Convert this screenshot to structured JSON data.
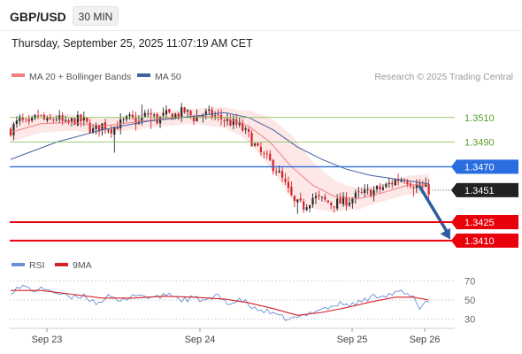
{
  "header": {
    "symbol": "GBP/USD",
    "timeframe": "30 MIN",
    "timestamp": "Thursday, September 25, 2025 11:07:19 AM CET"
  },
  "legend": {
    "ma20_bb": "MA 20 + Bollinger Bands",
    "ma50": "MA 50",
    "credit": "Research © 2025 Trading Central",
    "rsi": "RSI",
    "ma9": "9MA"
  },
  "colors": {
    "bull": "#2a2a2a",
    "bear": "#d61f26",
    "ma20": "#f08080",
    "ma50": "#4060a0",
    "band": "#fde3e3",
    "target_green": "#7cbf4a",
    "pivot_blue": "#2a6de0",
    "support_red": "#e8000b",
    "current": "#222222",
    "arrow": "#2d5d9f",
    "rsi": "#6b8fd6",
    "rsi_ma": "#d61f26"
  },
  "chart_data": [
    {
      "type": "candlestick",
      "title": "GBP/USD 30 MIN",
      "x_ticks": [
        "Sep 23",
        "Sep 24",
        "Sep 25",
        "Sep 26"
      ],
      "ylim": [
        1.3402,
        1.3535
      ],
      "levels": [
        {
          "name": "resistance-2",
          "value": 1.351,
          "label": "1.3510",
          "style": "green-thin"
        },
        {
          "name": "resistance-1",
          "value": 1.349,
          "label": "1.3490",
          "style": "green-thin"
        },
        {
          "name": "pivot",
          "value": 1.347,
          "label": "1.3470",
          "style": "blue"
        },
        {
          "name": "current",
          "value": 1.3451,
          "label": "1.3451",
          "style": "current"
        },
        {
          "name": "support-1",
          "value": 1.3425,
          "label": "1.3425",
          "style": "red"
        },
        {
          "name": "support-2",
          "value": 1.341,
          "label": "1.3410",
          "style": "red"
        }
      ],
      "anchors": [
        [
          0,
          1.35
        ],
        [
          3,
          1.3508
        ],
        [
          6,
          1.3503
        ],
        [
          9,
          1.3512
        ],
        [
          12,
          1.3506
        ],
        [
          15,
          1.351
        ],
        [
          18,
          1.3504
        ],
        [
          21,
          1.3508
        ],
        [
          24,
          1.3507
        ],
        [
          27,
          1.3499
        ],
        [
          30,
          1.3504
        ],
        [
          33,
          1.3501
        ],
        [
          36,
          1.3505
        ],
        [
          39,
          1.3509
        ],
        [
          42,
          1.3506
        ],
        [
          45,
          1.3514
        ],
        [
          48,
          1.3508
        ],
        [
          51,
          1.3512
        ],
        [
          54,
          1.3512
        ],
        [
          57,
          1.3515
        ],
        [
          60,
          1.351
        ],
        [
          63,
          1.3513
        ],
        [
          66,
          1.3512
        ],
        [
          69,
          1.3509
        ],
        [
          72,
          1.3506
        ],
        [
          75,
          1.3503
        ],
        [
          78,
          1.3495
        ],
        [
          81,
          1.3483
        ],
        [
          84,
          1.3476
        ],
        [
          87,
          1.3468
        ],
        [
          90,
          1.3455
        ],
        [
          93,
          1.344
        ],
        [
          96,
          1.3438
        ],
        [
          99,
          1.3445
        ],
        [
          102,
          1.3443
        ],
        [
          105,
          1.344
        ],
        [
          108,
          1.3441
        ],
        [
          111,
          1.3443
        ],
        [
          114,
          1.3447
        ],
        [
          117,
          1.3449
        ],
        [
          120,
          1.3451
        ],
        [
          123,
          1.3454
        ],
        [
          126,
          1.3459
        ],
        [
          129,
          1.3461
        ],
        [
          132,
          1.3456
        ],
        [
          135,
          1.3453
        ],
        [
          137,
          1.3451
        ]
      ],
      "ma20": [
        [
          0,
          1.3498
        ],
        [
          10,
          1.3505
        ],
        [
          20,
          1.3506
        ],
        [
          30,
          1.3503
        ],
        [
          40,
          1.3506
        ],
        [
          50,
          1.3509
        ],
        [
          60,
          1.3511
        ],
        [
          70,
          1.351
        ],
        [
          78,
          1.3503
        ],
        [
          85,
          1.349
        ],
        [
          92,
          1.347
        ],
        [
          99,
          1.3455
        ],
        [
          106,
          1.3446
        ],
        [
          114,
          1.3444
        ],
        [
          122,
          1.3449
        ],
        [
          130,
          1.3455
        ],
        [
          137,
          1.3456
        ]
      ],
      "ma50": [
        [
          0,
          1.3476
        ],
        [
          15,
          1.349
        ],
        [
          30,
          1.35
        ],
        [
          45,
          1.3507
        ],
        [
          60,
          1.3511
        ],
        [
          70,
          1.3514
        ],
        [
          78,
          1.351
        ],
        [
          86,
          1.35
        ],
        [
          94,
          1.3486
        ],
        [
          102,
          1.3476
        ],
        [
          110,
          1.3468
        ],
        [
          118,
          1.3463
        ],
        [
          126,
          1.346
        ],
        [
          132,
          1.3458
        ],
        [
          137,
          1.3456
        ]
      ],
      "band_half_width": [
        [
          0,
          0.0008
        ],
        [
          30,
          0.0006
        ],
        [
          60,
          0.0006
        ],
        [
          75,
          0.001
        ],
        [
          85,
          0.002
        ],
        [
          92,
          0.0026
        ],
        [
          100,
          0.0018
        ],
        [
          110,
          0.001
        ],
        [
          120,
          0.0007
        ],
        [
          137,
          0.0008
        ]
      ],
      "projection": {
        "from": [
          134,
          1.3454
        ],
        "to": [
          144,
          1.3411
        ]
      }
    },
    {
      "type": "line",
      "title": "RSI",
      "yticks": [
        70,
        50,
        30
      ],
      "ylim": [
        25,
        75
      ],
      "rsi": [
        [
          0,
          59
        ],
        [
          4,
          64
        ],
        [
          8,
          60
        ],
        [
          12,
          62
        ],
        [
          16,
          56
        ],
        [
          20,
          52
        ],
        [
          24,
          55
        ],
        [
          28,
          47
        ],
        [
          32,
          53
        ],
        [
          36,
          48
        ],
        [
          40,
          56
        ],
        [
          44,
          54
        ],
        [
          48,
          52
        ],
        [
          52,
          57
        ],
        [
          56,
          50
        ],
        [
          60,
          52
        ],
        [
          64,
          49
        ],
        [
          68,
          54
        ],
        [
          72,
          46
        ],
        [
          76,
          50
        ],
        [
          80,
          40
        ],
        [
          84,
          38
        ],
        [
          88,
          32
        ],
        [
          92,
          30
        ],
        [
          96,
          33
        ],
        [
          100,
          40
        ],
        [
          104,
          42
        ],
        [
          108,
          46
        ],
        [
          112,
          45
        ],
        [
          116,
          50
        ],
        [
          120,
          55
        ],
        [
          124,
          56
        ],
        [
          128,
          58
        ],
        [
          132,
          52
        ],
        [
          134,
          42
        ],
        [
          136,
          49
        ],
        [
          137,
          47
        ]
      ],
      "rsi_ma": [
        [
          0,
          60
        ],
        [
          10,
          60
        ],
        [
          20,
          56
        ],
        [
          30,
          52
        ],
        [
          40,
          52
        ],
        [
          50,
          54
        ],
        [
          60,
          53
        ],
        [
          70,
          51
        ],
        [
          78,
          47
        ],
        [
          86,
          41
        ],
        [
          94,
          34
        ],
        [
          102,
          37
        ],
        [
          110,
          42
        ],
        [
          118,
          48
        ],
        [
          126,
          53
        ],
        [
          132,
          53
        ],
        [
          137,
          50
        ]
      ]
    }
  ]
}
